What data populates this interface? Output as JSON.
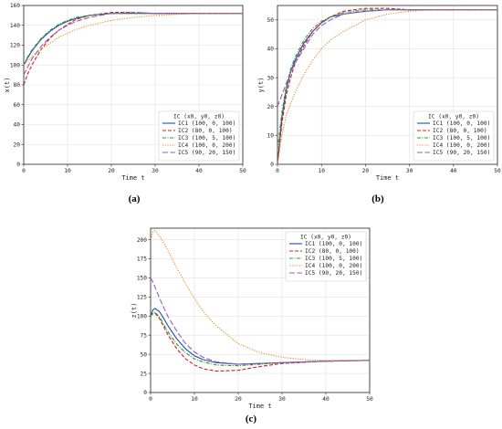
{
  "chart_data": [
    {
      "id": "a",
      "type": "line",
      "caption": "(a)",
      "xlabel": "Time t",
      "ylabel": "x(t)",
      "xlim": [
        0,
        50
      ],
      "ylim": [
        0,
        160
      ],
      "xticks": [
        0,
        10,
        20,
        30,
        40,
        50
      ],
      "yticks": [
        0,
        20,
        40,
        60,
        80,
        100,
        120,
        140,
        160
      ],
      "grid": true,
      "legend_position": "lower-right",
      "legend_header": "IC  (x0, y0, z0)",
      "series": [
        {
          "name": "IC1 (100, 0, 100)",
          "color": "#1f4fa8",
          "dash": "solid",
          "x": [
            0,
            1,
            2,
            4,
            6,
            8,
            10,
            12,
            15,
            20,
            25,
            30,
            40,
            50
          ],
          "y": [
            100,
            108,
            115,
            126,
            134,
            140,
            144,
            147,
            150,
            152,
            152,
            152,
            152,
            152
          ]
        },
        {
          "name": "IC2 (80, 0, 100)",
          "color": "#cc2222",
          "dash": "dashed",
          "x": [
            0,
            1,
            2,
            4,
            6,
            8,
            10,
            12,
            15,
            20,
            25,
            30,
            40,
            50
          ],
          "y": [
            80,
            92,
            101,
            116,
            127,
            135,
            141,
            146,
            150,
            153,
            153,
            152,
            152,
            152
          ]
        },
        {
          "name": "IC3 (100, 5, 100)",
          "color": "#2a9a2a",
          "dash": "dashdot",
          "x": [
            0,
            1,
            2,
            4,
            6,
            8,
            10,
            12,
            15,
            20,
            25,
            30,
            40,
            50
          ],
          "y": [
            100,
            109,
            116,
            127,
            135,
            141,
            145,
            148,
            150,
            152,
            152,
            152,
            152,
            152
          ]
        },
        {
          "name": "IC4 (100, 0, 200)",
          "color": "#ee8a1a",
          "dash": "dotted",
          "x": [
            0,
            2,
            4,
            6,
            8,
            10,
            12,
            15,
            20,
            25,
            30,
            35,
            40,
            50
          ],
          "y": [
            100,
            109,
            116,
            122,
            128,
            132,
            136,
            140,
            145,
            148,
            150,
            151,
            152,
            152
          ]
        },
        {
          "name": "IC5 (90, 20, 150)",
          "color": "#9a5ac8",
          "dash": "longdash",
          "x": [
            0,
            1,
            2,
            4,
            6,
            8,
            10,
            12,
            15,
            20,
            25,
            30,
            40,
            50
          ],
          "y": [
            90,
            99,
            107,
            119,
            128,
            135,
            140,
            144,
            148,
            152,
            153,
            152,
            152,
            152
          ]
        }
      ]
    },
    {
      "id": "b",
      "type": "line",
      "caption": "(b)",
      "xlabel": "Time t",
      "ylabel": "y(t)",
      "xlim": [
        0,
        50
      ],
      "ylim": [
        0,
        55
      ],
      "xticks": [
        0,
        10,
        20,
        30,
        40,
        50
      ],
      "yticks": [
        0,
        10,
        20,
        30,
        40,
        50
      ],
      "grid": true,
      "legend_position": "lower-right",
      "legend_header": "IC  (x0, y0, z0)",
      "series": [
        {
          "name": "IC1 (100, 0, 100)",
          "color": "#1f4fa8",
          "dash": "solid",
          "x": [
            0,
            1,
            2,
            3,
            4,
            6,
            8,
            10,
            12,
            15,
            20,
            25,
            30,
            40,
            50
          ],
          "y": [
            0,
            16,
            26,
            32,
            36,
            42,
            46,
            49,
            51,
            52,
            53,
            53.5,
            53.5,
            53.5,
            53.5
          ]
        },
        {
          "name": "IC2 (80, 0, 100)",
          "color": "#cc2222",
          "dash": "dashed",
          "x": [
            0,
            1,
            2,
            3,
            4,
            6,
            8,
            10,
            12,
            15,
            20,
            25,
            30,
            40,
            50
          ],
          "y": [
            0,
            14,
            24,
            30,
            35,
            41,
            46,
            49,
            51,
            53,
            54,
            54,
            53.5,
            53.5,
            53.5
          ]
        },
        {
          "name": "IC3 (100, 5, 100)",
          "color": "#2a9a2a",
          "dash": "dashdot",
          "x": [
            0,
            1,
            2,
            3,
            4,
            6,
            8,
            10,
            12,
            15,
            20,
            25,
            30,
            40,
            50
          ],
          "y": [
            5,
            18,
            27,
            33,
            37,
            43,
            47,
            49.5,
            51,
            52.5,
            53.5,
            53.5,
            53.5,
            53.5,
            53.5
          ]
        },
        {
          "name": "IC4 (100, 0, 200)",
          "color": "#ee8a1a",
          "dash": "dotted",
          "x": [
            0,
            1,
            2,
            4,
            6,
            8,
            10,
            12,
            15,
            20,
            25,
            30,
            35,
            40,
            50
          ],
          "y": [
            0,
            10,
            17,
            25,
            31,
            36,
            40,
            43,
            46,
            50,
            52,
            53,
            53.5,
            53.5,
            53.5
          ]
        },
        {
          "name": "IC5 (90, 20, 150)",
          "color": "#9a5ac8",
          "dash": "longdash",
          "x": [
            0,
            1,
            2,
            3,
            4,
            6,
            8,
            10,
            12,
            15,
            20,
            25,
            30,
            40,
            50
          ],
          "y": [
            20,
            24,
            28,
            32,
            35,
            40,
            45,
            48,
            50,
            52,
            53,
            53.5,
            53.5,
            53.5,
            53.5
          ]
        }
      ]
    },
    {
      "id": "c",
      "type": "line",
      "caption": "(c)",
      "xlabel": "Time t",
      "ylabel": "z(t)",
      "xlim": [
        0,
        50
      ],
      "ylim": [
        0,
        215
      ],
      "xticks": [
        0,
        10,
        20,
        30,
        40,
        50
      ],
      "yticks": [
        0,
        25,
        50,
        75,
        100,
        125,
        150,
        175,
        200
      ],
      "grid": true,
      "legend_position": "top-right",
      "legend_header": "IC  (x0, y0, z0)",
      "series": [
        {
          "name": "IC1 (100, 0, 100)",
          "color": "#1f4fa8",
          "dash": "solid",
          "x": [
            0,
            0.5,
            1,
            2,
            3,
            4,
            6,
            8,
            10,
            12,
            15,
            20,
            25,
            30,
            40,
            50
          ],
          "y": [
            100,
            108,
            110,
            106,
            97,
            87,
            70,
            57,
            48,
            43,
            39,
            37,
            38,
            39,
            41,
            42
          ]
        },
        {
          "name": "IC2 (80, 0, 100)",
          "color": "#cc2222",
          "dash": "dashed",
          "x": [
            0,
            0.5,
            1,
            2,
            3,
            4,
            6,
            8,
            10,
            12,
            15,
            20,
            25,
            30,
            40,
            50
          ],
          "y": [
            100,
            103,
            104,
            97,
            86,
            75,
            57,
            44,
            36,
            31,
            28,
            29,
            34,
            38,
            41,
            42
          ]
        },
        {
          "name": "IC3 (100, 5, 100)",
          "color": "#2a9a2a",
          "dash": "dashdot",
          "x": [
            0,
            0.5,
            1,
            2,
            3,
            4,
            6,
            8,
            10,
            12,
            15,
            20,
            25,
            30,
            40,
            50
          ],
          "y": [
            100,
            104,
            105,
            99,
            89,
            79,
            63,
            52,
            44,
            40,
            36,
            35,
            37,
            39,
            41,
            42
          ]
        },
        {
          "name": "IC4 (100, 0, 200)",
          "color": "#ee8a1a",
          "dash": "dotted",
          "x": [
            0,
            0.5,
            1,
            2,
            3,
            4,
            6,
            8,
            10,
            12,
            15,
            20,
            25,
            30,
            35,
            40,
            50
          ],
          "y": [
            200,
            210,
            212,
            205,
            196,
            185,
            163,
            142,
            123,
            106,
            87,
            64,
            52,
            46,
            43,
            42,
            42
          ]
        },
        {
          "name": "IC5 (90, 20, 150)",
          "color": "#9a5ac8",
          "dash": "longdash",
          "x": [
            0,
            0.5,
            1,
            2,
            3,
            4,
            6,
            8,
            10,
            12,
            15,
            20,
            25,
            30,
            40,
            50
          ],
          "y": [
            150,
            145,
            138,
            124,
            111,
            99,
            80,
            64,
            53,
            46,
            40,
            37,
            38,
            39,
            41,
            42
          ]
        }
      ]
    }
  ]
}
